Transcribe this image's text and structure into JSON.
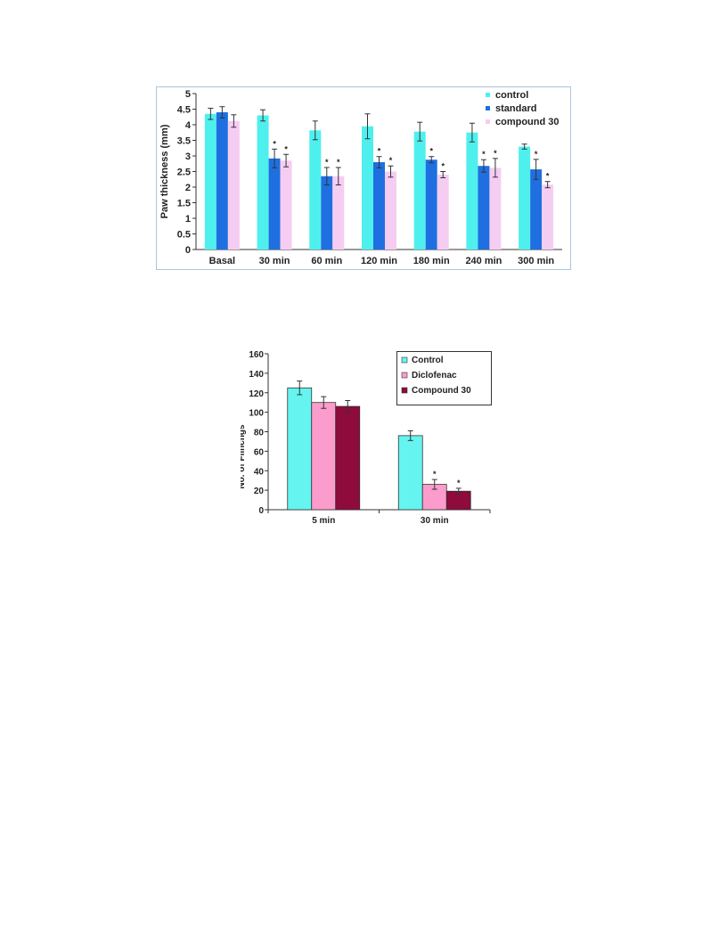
{
  "chart_data": [
    {
      "type": "bar",
      "title": "",
      "xlabel": "",
      "ylabel": "Paw thickness (mm)",
      "ylim": [
        0,
        5
      ],
      "yticks": [
        "0",
        "0.5",
        "1",
        "1.5",
        "2",
        "2.5",
        "3",
        "3.5",
        "4",
        "4.5",
        "5"
      ],
      "categories": [
        "Basal",
        "30 min",
        "60 min",
        "120 min",
        "180 min",
        "240 min",
        "300 min"
      ],
      "legend_position": "top-right",
      "series": [
        {
          "name": "control",
          "color": "#4ef0ee",
          "values": [
            4.35,
            4.3,
            3.82,
            3.95,
            3.78,
            3.75,
            3.3
          ],
          "errors": [
            0.18,
            0.18,
            0.3,
            0.4,
            0.3,
            0.3,
            0.08
          ],
          "sig": [
            false,
            false,
            false,
            false,
            false,
            false,
            false
          ]
        },
        {
          "name": "standard",
          "color": "#1f6fe0",
          "values": [
            4.4,
            2.92,
            2.35,
            2.8,
            2.88,
            2.68,
            2.57
          ],
          "errors": [
            0.18,
            0.3,
            0.28,
            0.18,
            0.1,
            0.2,
            0.32
          ],
          "sig": [
            false,
            true,
            true,
            true,
            true,
            true,
            true
          ]
        },
        {
          "name": "compound 30",
          "color": "#f6cdf2",
          "values": [
            4.12,
            2.85,
            2.35,
            2.5,
            2.4,
            2.62,
            2.08
          ],
          "errors": [
            0.2,
            0.2,
            0.28,
            0.18,
            0.1,
            0.3,
            0.1
          ],
          "sig": [
            false,
            true,
            true,
            true,
            true,
            true,
            true
          ]
        }
      ],
      "sig_marker": "*"
    },
    {
      "type": "bar",
      "title": "",
      "xlabel": "",
      "ylabel": "No. of Flinchgs",
      "ylim": [
        0,
        160
      ],
      "yticks": [
        "0",
        "20",
        "40",
        "60",
        "80",
        "100",
        "120",
        "140",
        "160"
      ],
      "categories": [
        "5 min",
        "30 min"
      ],
      "legend_position": "top-right",
      "series": [
        {
          "name": "Control",
          "color": "#66f4f0",
          "values": [
            125,
            76
          ],
          "errors": [
            7,
            5
          ],
          "sig": [
            false,
            false
          ]
        },
        {
          "name": "Diclofenac",
          "color": "#fc9ccc",
          "values": [
            110,
            26
          ],
          "errors": [
            6,
            5
          ],
          "sig": [
            false,
            true
          ]
        },
        {
          "name": "Compound 30",
          "color": "#8e0b3c",
          "values": [
            106,
            19
          ],
          "errors": [
            6,
            3
          ],
          "sig": [
            false,
            true
          ]
        }
      ],
      "sig_marker": "*"
    }
  ]
}
